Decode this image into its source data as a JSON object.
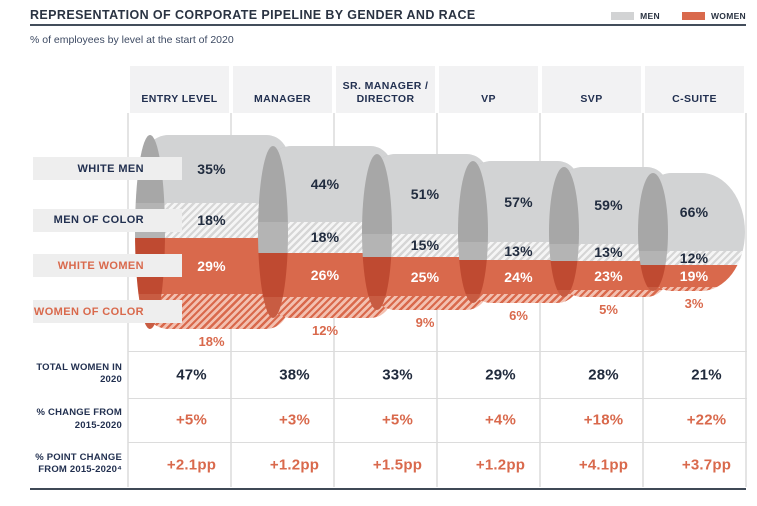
{
  "header": {
    "title": "REPRESENTATION OF CORPORATE PIPELINE BY GENDER AND RACE",
    "subtitle": "% of employees by level at the start of 2020"
  },
  "legend": [
    {
      "label": "MEN",
      "color": "#d2d3d4"
    },
    {
      "label": "WOMEN",
      "color": "#d9694c"
    }
  ],
  "chart_data": {
    "type": "area",
    "subtype": "stacked-cylinder-funnel",
    "unit": "%",
    "categories": [
      "ENTRY LEVEL",
      "MANAGER",
      "SR. MANAGER / DIRECTOR",
      "VP",
      "SVP",
      "C-SUITE"
    ],
    "series": [
      {
        "name": "WHITE MEN",
        "style": "solid-gray",
        "values": [
          35,
          44,
          51,
          57,
          59,
          66
        ]
      },
      {
        "name": "MEN OF COLOR",
        "style": "hatched-gray",
        "values": [
          18,
          18,
          15,
          13,
          13,
          12
        ]
      },
      {
        "name": "WHITE WOMEN",
        "style": "solid-orange",
        "values": [
          29,
          26,
          25,
          24,
          23,
          19
        ]
      },
      {
        "name": "WOMEN OF COLOR",
        "style": "hatched-orange",
        "values": [
          18,
          12,
          9,
          6,
          5,
          3
        ]
      }
    ],
    "legend_position": "top-right",
    "grid": "light vertical column separators"
  },
  "summary_rows": [
    {
      "label": "TOTAL WOMEN IN 2020",
      "tone": "navy",
      "values": [
        "47%",
        "38%",
        "33%",
        "29%",
        "28%",
        "21%"
      ]
    },
    {
      "label": "% CHANGE FROM 2015-2020",
      "tone": "orange",
      "values": [
        "+5%",
        "+3%",
        "+5%",
        "+4%",
        "+18%",
        "+22%"
      ]
    },
    {
      "label": "% POINT CHANGE FROM 2015-2020⁴",
      "tone": "orange",
      "values": [
        "+2.1pp",
        "+1.2pp",
        "+1.5pp",
        "+1.2pp",
        "+4.1pp",
        "+3.7pp"
      ]
    }
  ],
  "colors": {
    "navy_text": "#223050",
    "title_text": "#2a3342",
    "orange": "#d9694c",
    "orange_rim": "#bf4a31",
    "gray_fill": "#d2d3d4",
    "gray_rim": "#a7a7a7",
    "hatch_gray_light": "#f5f5f5",
    "hatch_orange_light": "#f3c0b0",
    "header_bg": "#f2f2f3",
    "pill_bg": "#eeeeee",
    "rule_dark": "#3f4956",
    "grid_line": "#e4e4e4"
  }
}
